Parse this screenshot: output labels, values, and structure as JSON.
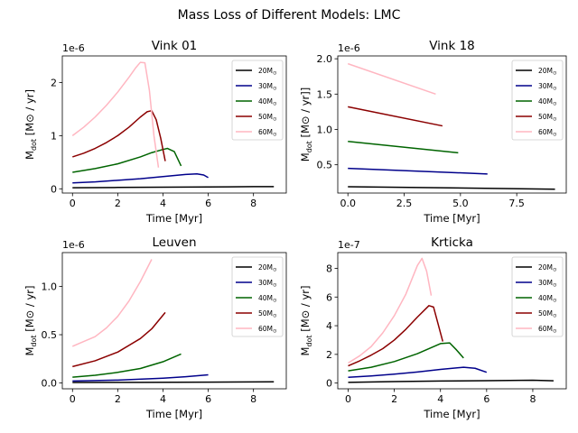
{
  "figure": {
    "title": "Mass Loss of Different Models: LMC"
  },
  "colors": {
    "20": "#000000",
    "30": "#00008b",
    "40": "#006400",
    "50": "#8b0000",
    "60": "#ffb6c1"
  },
  "chart_data": [
    {
      "type": "line",
      "title": "Vink 01",
      "xlabel": "Time [Myr]",
      "ylabel": "M_dot [M⊙ / yr]",
      "offset_text": "1e-6",
      "xlim": [
        -0.45,
        9.45
      ],
      "ylim": [
        -0.08,
        2.5
      ],
      "xticks": [
        0,
        2,
        4,
        6,
        8
      ],
      "yticks": [
        0,
        1,
        2
      ],
      "legend_position": "upper right",
      "series": [
        {
          "name": "20M⊙",
          "color_key": "20",
          "x": [
            0,
            2,
            4,
            6,
            8,
            8.9
          ],
          "y": [
            0.02,
            0.025,
            0.03,
            0.035,
            0.04,
            0.04
          ]
        },
        {
          "name": "30M⊙",
          "color_key": "30",
          "x": [
            0,
            1,
            2,
            3,
            4,
            5,
            5.5,
            5.8,
            6.0
          ],
          "y": [
            0.11,
            0.13,
            0.16,
            0.19,
            0.23,
            0.27,
            0.28,
            0.26,
            0.21
          ]
        },
        {
          "name": "40M⊙",
          "color_key": "40",
          "x": [
            0,
            1,
            2,
            3,
            3.5,
            4.0,
            4.2,
            4.5,
            4.8
          ],
          "y": [
            0.31,
            0.38,
            0.47,
            0.6,
            0.68,
            0.74,
            0.76,
            0.7,
            0.43
          ]
        },
        {
          "name": "50M⊙",
          "color_key": "50",
          "x": [
            0,
            0.5,
            1,
            1.5,
            2,
            2.5,
            3.0,
            3.3,
            3.5,
            3.7,
            3.9,
            4.1
          ],
          "y": [
            0.6,
            0.67,
            0.76,
            0.87,
            1.0,
            1.16,
            1.35,
            1.45,
            1.47,
            1.3,
            0.95,
            0.52
          ]
        },
        {
          "name": "60M⊙",
          "color_key": "60",
          "x": [
            0,
            0.5,
            1,
            1.5,
            2,
            2.5,
            2.8,
            3.0,
            3.2,
            3.4,
            3.6,
            3.8
          ],
          "y": [
            1.0,
            1.16,
            1.35,
            1.57,
            1.82,
            2.1,
            2.28,
            2.38,
            2.37,
            1.85,
            1.0,
            0.4
          ]
        }
      ]
    },
    {
      "type": "line",
      "title": "Vink 18",
      "xlabel": "Time [Myr]",
      "ylabel": "M_dot [M⊙ / yr]]",
      "offset_text": "1e-6",
      "xlim": [
        -0.45,
        9.7
      ],
      "ylim": [
        0.1,
        2.04
      ],
      "xticks": [
        0.0,
        2.5,
        5.0,
        7.5
      ],
      "yticks": [
        0.5,
        1.0,
        1.5,
        2.0
      ],
      "legend_position": "upper right",
      "series": [
        {
          "name": "20M⊙",
          "color_key": "20",
          "x": [
            0,
            9.2
          ],
          "y": [
            0.19,
            0.155
          ]
        },
        {
          "name": "30M⊙",
          "color_key": "30",
          "x": [
            0,
            6.2
          ],
          "y": [
            0.45,
            0.37
          ]
        },
        {
          "name": "40M⊙",
          "color_key": "40",
          "x": [
            0,
            4.9
          ],
          "y": [
            0.83,
            0.67
          ]
        },
        {
          "name": "50M⊙",
          "color_key": "50",
          "x": [
            0,
            4.2
          ],
          "y": [
            1.32,
            1.05
          ]
        },
        {
          "name": "60M⊙",
          "color_key": "60",
          "x": [
            0,
            3.9
          ],
          "y": [
            1.93,
            1.5
          ]
        }
      ]
    },
    {
      "type": "line",
      "title": "Leuven",
      "xlabel": "Time [Myr]",
      "ylabel": "M_dot [M⊙ / yr]",
      "offset_text": "1e-6",
      "xlim": [
        -0.45,
        9.45
      ],
      "ylim": [
        -0.06,
        1.35
      ],
      "xticks": [
        0,
        2,
        4,
        6,
        8
      ],
      "yticks": [
        0.0,
        0.5,
        1.0
      ],
      "legend_position": "upper right",
      "series": [
        {
          "name": "20M⊙",
          "color_key": "20",
          "x": [
            0,
            3,
            6,
            8.9
          ],
          "y": [
            0.005,
            0.007,
            0.009,
            0.012
          ]
        },
        {
          "name": "30M⊙",
          "color_key": "30",
          "x": [
            0,
            2,
            4,
            5,
            6.0
          ],
          "y": [
            0.02,
            0.03,
            0.05,
            0.065,
            0.085
          ]
        },
        {
          "name": "40M⊙",
          "color_key": "40",
          "x": [
            0,
            1,
            2,
            3,
            4,
            4.8
          ],
          "y": [
            0.06,
            0.08,
            0.11,
            0.15,
            0.22,
            0.3
          ]
        },
        {
          "name": "50M⊙",
          "color_key": "50",
          "x": [
            0,
            1,
            2,
            3,
            3.5,
            4.1
          ],
          "y": [
            0.17,
            0.23,
            0.32,
            0.46,
            0.56,
            0.73
          ]
        },
        {
          "name": "60M⊙",
          "color_key": "60",
          "x": [
            0,
            1,
            1.5,
            2,
            2.5,
            3.0,
            3.5
          ],
          "y": [
            0.38,
            0.48,
            0.57,
            0.69,
            0.85,
            1.05,
            1.28
          ]
        }
      ]
    },
    {
      "type": "line",
      "title": "Krticka",
      "xlabel": "Time [Myr]",
      "ylabel": "M_dot [M⊙ / yr]",
      "offset_text": "1e-7",
      "xlim": [
        -0.45,
        9.45
      ],
      "ylim": [
        -0.4,
        9.1
      ],
      "xticks": [
        0,
        2,
        4,
        6,
        8
      ],
      "yticks": [
        0,
        2,
        4,
        6,
        8
      ],
      "legend_position": "upper right",
      "series": [
        {
          "name": "20M⊙",
          "color_key": "20",
          "x": [
            0,
            2,
            4,
            6,
            8,
            8.9
          ],
          "y": [
            0.05,
            0.1,
            0.14,
            0.17,
            0.2,
            0.16
          ]
        },
        {
          "name": "30M⊙",
          "color_key": "30",
          "x": [
            0,
            1,
            2,
            3,
            4,
            5,
            5.5,
            6.0
          ],
          "y": [
            0.4,
            0.5,
            0.62,
            0.77,
            0.95,
            1.1,
            1.03,
            0.75
          ]
        },
        {
          "name": "40M⊙",
          "color_key": "40",
          "x": [
            0,
            1,
            2,
            3,
            4.0,
            4.4,
            4.7,
            5.0
          ],
          "y": [
            0.85,
            1.1,
            1.5,
            2.05,
            2.75,
            2.8,
            2.3,
            1.75
          ]
        },
        {
          "name": "50M⊙",
          "color_key": "50",
          "x": [
            0,
            0.5,
            1,
            1.5,
            2,
            2.5,
            3.0,
            3.5,
            3.7,
            3.9,
            4.1
          ],
          "y": [
            1.2,
            1.55,
            1.95,
            2.4,
            3.0,
            3.75,
            4.6,
            5.4,
            5.3,
            4.1,
            2.9
          ]
        },
        {
          "name": "60M⊙",
          "color_key": "60",
          "x": [
            0,
            0.5,
            1,
            1.5,
            2,
            2.5,
            3.0,
            3.2,
            3.4,
            3.6
          ],
          "y": [
            1.4,
            1.9,
            2.55,
            3.5,
            4.7,
            6.2,
            8.2,
            8.7,
            7.8,
            6.1
          ]
        }
      ]
    }
  ]
}
